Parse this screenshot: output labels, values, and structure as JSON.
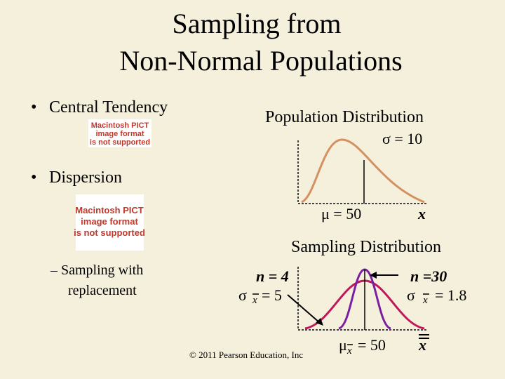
{
  "title": [
    "Sampling from",
    "Non-Normal Populations"
  ],
  "bullets": [
    "Central Tendency",
    "Dispersion"
  ],
  "sub_bullet": [
    "Sampling with",
    "replacement"
  ],
  "placeholders": [
    [
      "Macintosh PICT",
      "image format",
      "is not supported"
    ],
    [
      "Macintosh PICT",
      "image format",
      "is not supported"
    ]
  ],
  "population": {
    "title": "Population Distribution",
    "sigma": "σ = 10",
    "mu": "μ = 50",
    "x": "x"
  },
  "sampling": {
    "title": "Sampling Distribution",
    "small": {
      "n": "n = 4",
      "sigma": "σ",
      "sub": "x",
      "value": "= 5"
    },
    "large": {
      "n": "n =30",
      "sigma": "σ",
      "sub": "x",
      "value": "= 1.8"
    },
    "mu": "μ",
    "mu_sub": "x",
    "mu_value": "= 50",
    "x": "x"
  },
  "copyright": "© 2011 Pearson Education, Inc"
}
